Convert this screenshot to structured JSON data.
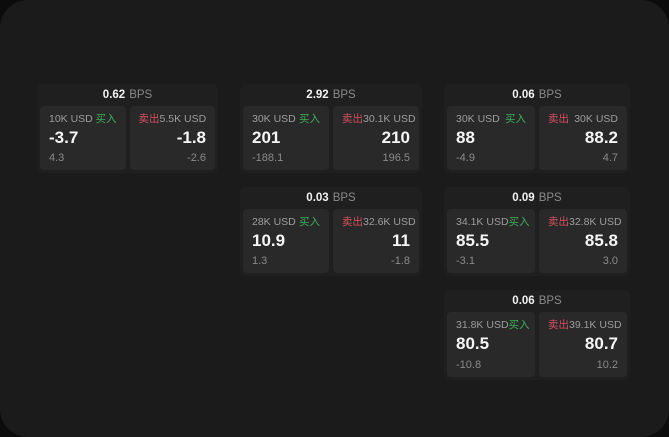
{
  "labels": {
    "buy": "买入",
    "sell": "卖出",
    "bps_unit": "BPS"
  },
  "colors": {
    "buy_green": "#3dae5b",
    "sell_red": "#d44f5f",
    "panel_bg": "#1b1b1b",
    "card_bg": "#1f1f1f",
    "tile_bg": "#292929",
    "value_text": "#f5f5f5",
    "muted_text": "#8a8a8a"
  },
  "cards": [
    {
      "bps": "0.62",
      "buy": {
        "amount": "10K USD",
        "value": "-3.7",
        "sub": "4.3"
      },
      "sell": {
        "amount": "5.5K USD",
        "value": "-1.8",
        "sub": "-2.6"
      }
    },
    {
      "bps": "2.92",
      "buy": {
        "amount": "30K USD",
        "value": "201",
        "sub": "-188.1"
      },
      "sell": {
        "amount": "30.1K USD",
        "value": "210",
        "sub": "196.5"
      }
    },
    {
      "bps": "0.06",
      "buy": {
        "amount": "30K USD",
        "value": "88",
        "sub": "-4.9"
      },
      "sell": {
        "amount": "30K USD",
        "value": "88.2",
        "sub": "4.7"
      }
    },
    {
      "bps": "0.03",
      "buy": {
        "amount": "28K USD",
        "value": "10.9",
        "sub": "1.3"
      },
      "sell": {
        "amount": "32.6K USD",
        "value": "11",
        "sub": "-1.8"
      }
    },
    {
      "bps": "0.09",
      "buy": {
        "amount": "34.1K USD",
        "value": "85.5",
        "sub": "-3.1"
      },
      "sell": {
        "amount": "32.8K USD",
        "value": "85.8",
        "sub": "3.0"
      }
    },
    {
      "bps": "0.06",
      "buy": {
        "amount": "31.8K USD",
        "value": "80.5",
        "sub": "-10.8"
      },
      "sell": {
        "amount": "39.1K USD",
        "value": "80.7",
        "sub": "10.2"
      }
    }
  ]
}
